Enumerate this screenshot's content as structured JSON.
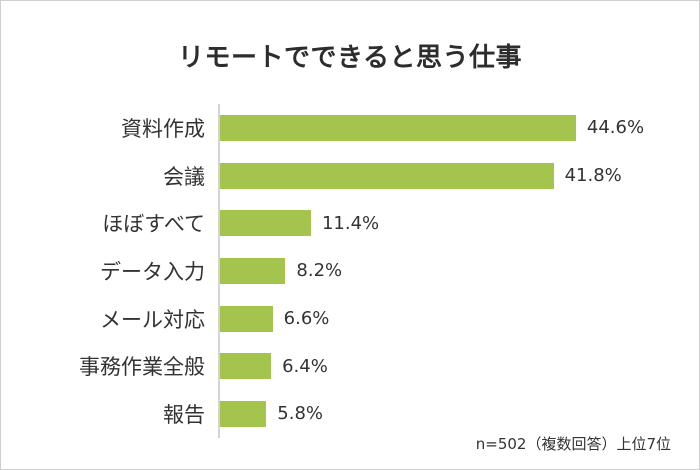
{
  "page": {
    "title": "リモートでできると思う仕事",
    "footnote": "n=502（複数回答）上位7位"
  },
  "chart_data": {
    "type": "bar",
    "orientation": "horizontal",
    "title": "リモートでできると思う仕事",
    "categories": [
      "資料作成",
      "会議",
      "ほぼすべて",
      "データ入力",
      "メール対応",
      "事務作業全般",
      "報告"
    ],
    "values": [
      44.6,
      41.8,
      11.4,
      8.2,
      6.6,
      6.4,
      5.8
    ],
    "value_labels": [
      "44.6%",
      "41.8%",
      "11.4%",
      "8.2%",
      "6.6%",
      "6.4%",
      "5.8%"
    ],
    "unit": "%",
    "xlim": [
      0,
      45
    ],
    "grid": false,
    "legend": "none",
    "note": "n=502（複数回答）上位7位",
    "colors": {
      "bar": "#a4c44d",
      "axis_line": "#d4d4d4",
      "text": "#333333",
      "title_text": "#2d2d2d",
      "border": "#cfcfcf"
    }
  }
}
